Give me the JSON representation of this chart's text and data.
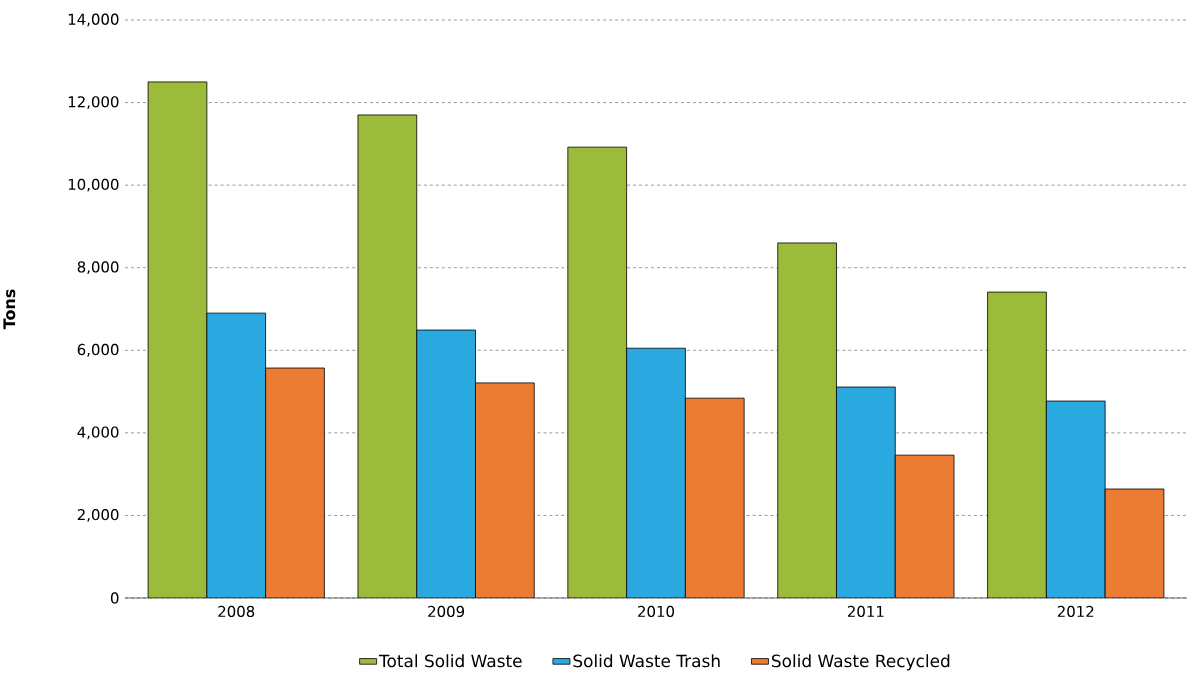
{
  "chart_data": {
    "type": "bar",
    "ylabel": "Tons",
    "categories": [
      "2008",
      "2009",
      "2010",
      "2011",
      "2012"
    ],
    "series": [
      {
        "name": "Total Solid Waste",
        "color": "#9dbb3a",
        "values": [
          12500,
          11700,
          10920,
          8600,
          7410
        ]
      },
      {
        "name": "Solid Waste Trash",
        "color": "#29a9e0",
        "values": [
          6900,
          6490,
          6050,
          5110,
          4770
        ]
      },
      {
        "name": "Solid Waste Recycled",
        "color": "#ec7b33",
        "values": [
          5570,
          5210,
          4840,
          3460,
          2640
        ]
      }
    ],
    "ylim": [
      0,
      14000
    ],
    "yticks": [
      {
        "value": 0,
        "label": "0"
      },
      {
        "value": 2000,
        "label": "2,000"
      },
      {
        "value": 4000,
        "label": "4,000"
      },
      {
        "value": 6000,
        "label": "6,000"
      },
      {
        "value": 8000,
        "label": "8,000"
      },
      {
        "value": 10000,
        "label": "10,000"
      },
      {
        "value": 12000,
        "label": "12,000"
      },
      {
        "value": 14000,
        "label": "14,000"
      }
    ],
    "grid": "y",
    "legend": "bottom"
  }
}
